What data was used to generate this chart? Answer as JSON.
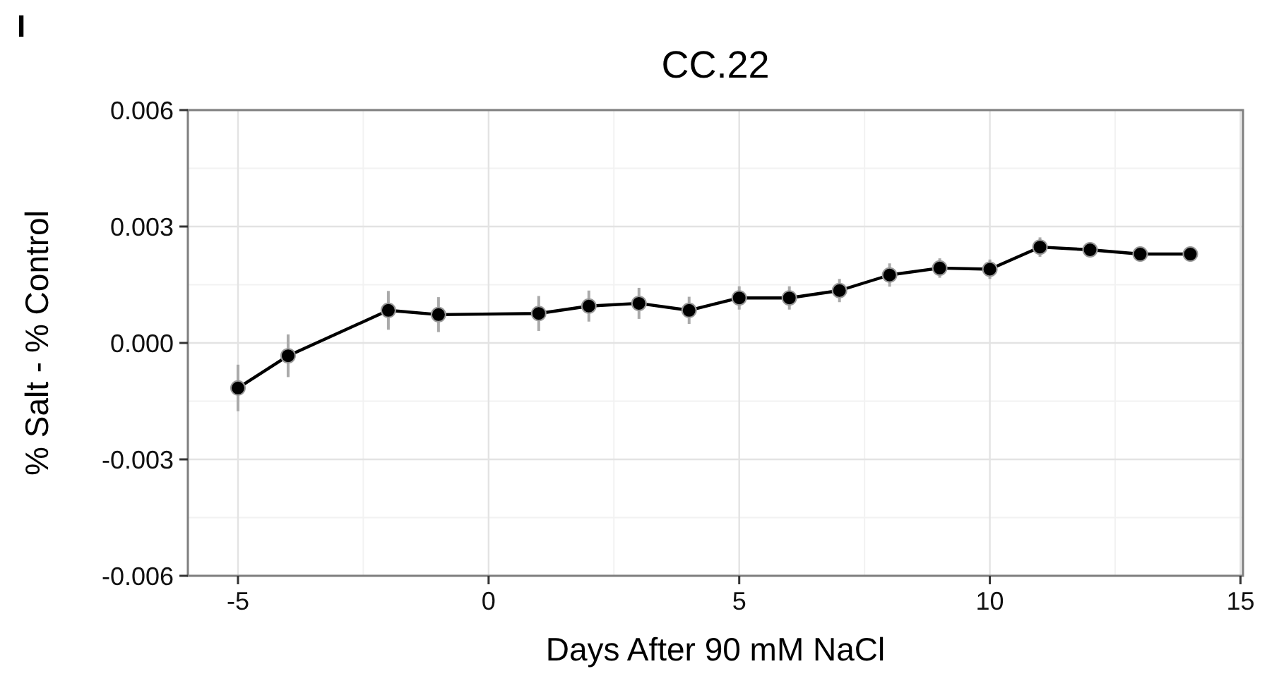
{
  "chart_data": {
    "type": "line",
    "title": "CC.22",
    "xlabel": "Days After 90 mM NaCl",
    "ylabel": "% Salt - % Control",
    "annotations": [
      "I"
    ],
    "x": [
      -5,
      -4,
      -2,
      -1,
      1,
      2,
      3,
      4,
      5,
      6,
      7,
      8,
      9,
      10,
      11,
      12,
      13,
      14
    ],
    "series": [
      {
        "color": "#000000",
        "values": [
          -0.00116,
          -0.00033,
          0.00084,
          0.00073,
          0.00076,
          0.00095,
          0.00102,
          0.00084,
          0.00116,
          0.00116,
          0.00135,
          0.00175,
          0.00193,
          0.0019,
          0.00247,
          0.0024,
          0.00229,
          0.00229
        ],
        "errors": [
          0.0006,
          0.00055,
          0.0005,
          0.00045,
          0.00045,
          0.0004,
          0.0004,
          0.00035,
          0.0003,
          0.0003,
          0.0003,
          0.0003,
          0.00025,
          0.00025,
          0.00025,
          0.0002,
          0.0002,
          0.0002
        ]
      }
    ],
    "xlim": [
      -6,
      15.05
    ],
    "xticks": [
      -5,
      0,
      5,
      10,
      15
    ],
    "ylim": [
      -0.006,
      0.006
    ],
    "yticks": [
      {
        "value": -0.006,
        "label": "-0.006"
      },
      {
        "value": -0.003,
        "label": "-0.003"
      },
      {
        "value": 0,
        "label": "0.000"
      },
      {
        "value": 0.003,
        "label": "0.003"
      },
      {
        "value": 0.006,
        "label": "0.006"
      }
    ],
    "grid": true,
    "marker": "circle",
    "line_style": "solid"
  }
}
